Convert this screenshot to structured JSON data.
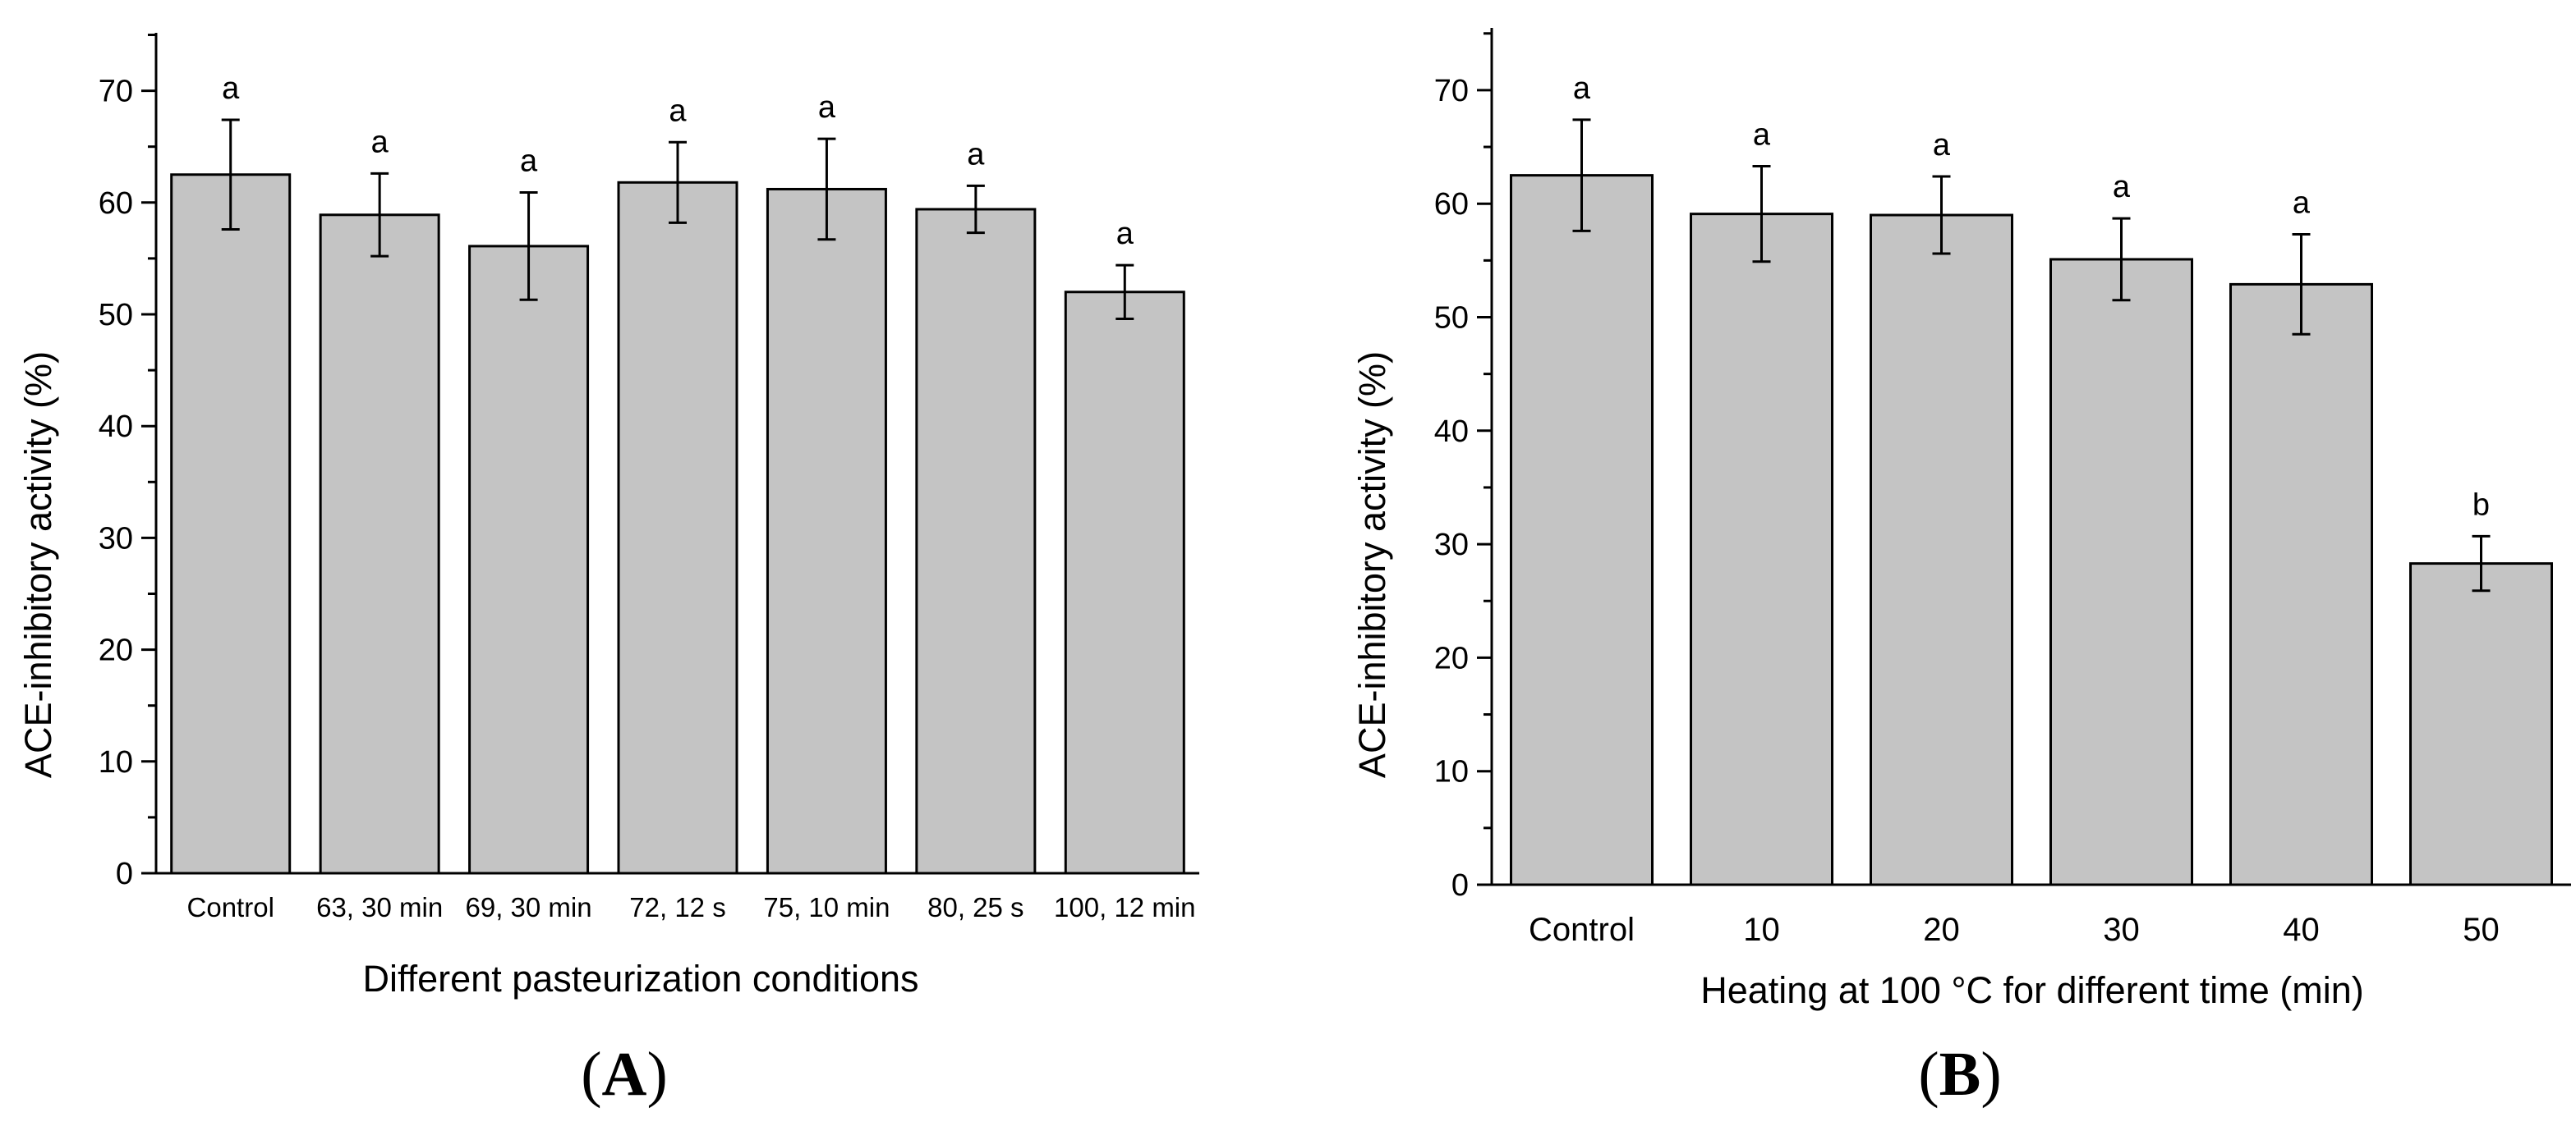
{
  "figure": {
    "label_a_open": "(",
    "label_a_letter": "A",
    "label_a_close": ")",
    "label_b_open": "(",
    "label_b_letter": "B",
    "label_b_close": ")"
  },
  "colors": {
    "bar_fill": "#c4c4c4",
    "bar_stroke": "#000000",
    "axis": "#000000"
  },
  "chart_data": [
    {
      "type": "bar",
      "panel": "A",
      "title": "",
      "xlabel": "Different pasteurization conditions",
      "ylabel": "ACE-inhibitory activity (%)",
      "ylim": [
        0,
        75
      ],
      "yticks": [
        0,
        10,
        20,
        30,
        40,
        50,
        60,
        70
      ],
      "categories": [
        "Control",
        "63, 30 min",
        "69, 30 min",
        "72, 12 s",
        "75, 10 min",
        "80, 25 s",
        "100, 12 min"
      ],
      "values": [
        62.5,
        58.9,
        56.1,
        61.8,
        61.2,
        59.4,
        52.0
      ],
      "errors": [
        4.9,
        3.7,
        4.8,
        3.6,
        4.5,
        2.1,
        2.4
      ],
      "significance": [
        "a",
        "a",
        "a",
        "a",
        "a",
        "a",
        "a"
      ]
    },
    {
      "type": "bar",
      "panel": "B",
      "title": "",
      "xlabel": "Heating at 100 °C for different time (min)",
      "ylabel": "ACE-inhibitory activity (%)",
      "ylim": [
        0,
        75
      ],
      "yticks": [
        0,
        10,
        20,
        30,
        40,
        50,
        60,
        70
      ],
      "categories": [
        "Control",
        "10",
        "20",
        "30",
        "40",
        "50"
      ],
      "values": [
        62.5,
        59.1,
        59.0,
        55.1,
        52.9,
        28.3
      ],
      "errors": [
        4.9,
        4.2,
        3.4,
        3.6,
        4.4,
        2.4
      ],
      "significance": [
        "a",
        "a",
        "a",
        "a",
        "a",
        "b"
      ]
    }
  ]
}
